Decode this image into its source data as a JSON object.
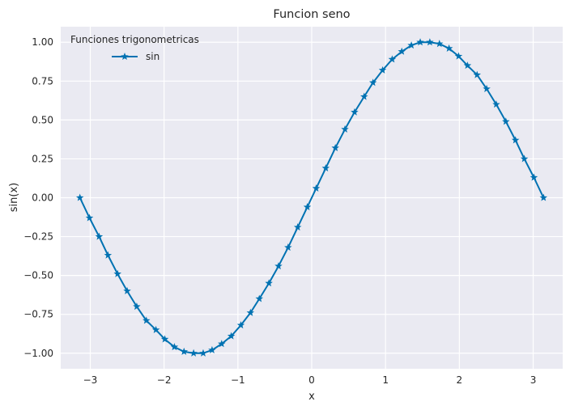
{
  "chart_data": {
    "type": "line",
    "title": "Funcion seno",
    "xlabel": "x",
    "ylabel": "sin(x)",
    "xlim": [
      -3.4,
      3.4
    ],
    "ylim": [
      -1.1,
      1.1
    ],
    "xticks": [
      -3,
      -2,
      -1,
      0,
      1,
      2,
      3
    ],
    "xtick_labels": [
      "−3",
      "−2",
      "−1",
      "0",
      "1",
      "2",
      "3"
    ],
    "yticks": [
      -1.0,
      -0.75,
      -0.5,
      -0.25,
      0.0,
      0.25,
      0.5,
      0.75,
      1.0
    ],
    "ytick_labels": [
      "−1.00",
      "−0.75",
      "−0.50",
      "−0.25",
      "0.00",
      "0.25",
      "0.50",
      "0.75",
      "1.00"
    ],
    "grid": true,
    "legend": {
      "title": "Funciones trigonometricas",
      "placement": "upper-left",
      "entries": [
        "sin"
      ]
    },
    "series": [
      {
        "name": "sin",
        "color": "#0072b2",
        "marker": "star",
        "x": [
          -3.14,
          -3.01,
          -2.88,
          -2.76,
          -2.63,
          -2.5,
          -2.37,
          -2.24,
          -2.11,
          -1.99,
          -1.86,
          -1.73,
          -1.6,
          -1.47,
          -1.35,
          -1.22,
          -1.09,
          -0.96,
          -0.83,
          -0.71,
          -0.58,
          -0.45,
          -0.32,
          -0.19,
          -0.06,
          0.06,
          0.19,
          0.32,
          0.45,
          0.58,
          0.71,
          0.83,
          0.96,
          1.09,
          1.22,
          1.35,
          1.47,
          1.6,
          1.73,
          1.86,
          1.99,
          2.11,
          2.24,
          2.37,
          2.5,
          2.63,
          2.76,
          2.88,
          3.01,
          3.14
        ],
        "y": [
          0.0,
          -0.13,
          -0.25,
          -0.37,
          -0.49,
          -0.6,
          -0.7,
          -0.79,
          -0.85,
          -0.91,
          -0.96,
          -0.99,
          -1.0,
          -1.0,
          -0.98,
          -0.94,
          -0.89,
          -0.82,
          -0.74,
          -0.65,
          -0.55,
          -0.44,
          -0.32,
          -0.19,
          -0.06,
          0.06,
          0.19,
          0.32,
          0.44,
          0.55,
          0.65,
          0.74,
          0.82,
          0.89,
          0.94,
          0.98,
          1.0,
          1.0,
          0.99,
          0.96,
          0.91,
          0.85,
          0.79,
          0.7,
          0.6,
          0.49,
          0.37,
          0.25,
          0.13,
          0.0
        ]
      }
    ]
  }
}
